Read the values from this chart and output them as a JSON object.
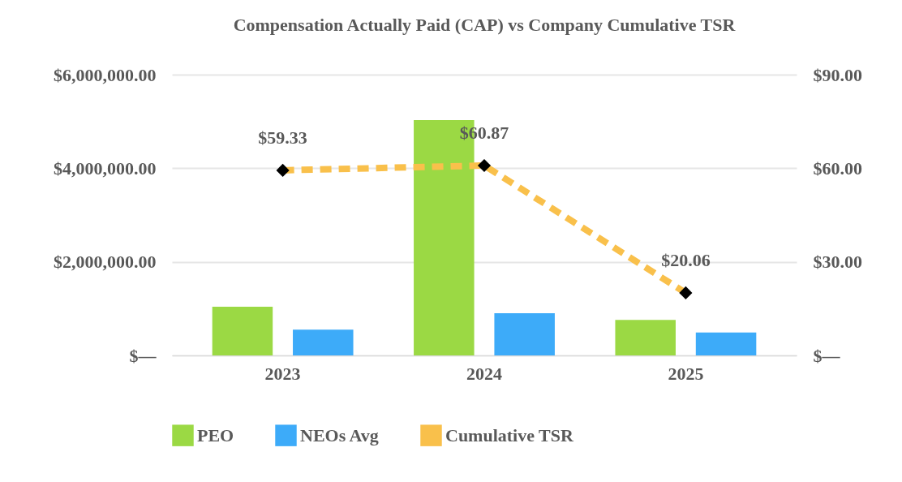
{
  "chart_data": {
    "type": "bar",
    "title": "Compensation Actually Paid (CAP) vs Company Cumulative TSR",
    "categories": [
      "2023",
      "2024",
      "2025"
    ],
    "series": [
      {
        "name": "PEO",
        "color": "#9bd944",
        "values": [
          1040000,
          5030000,
          760000
        ]
      },
      {
        "name": "NEOs Avg",
        "color": "#3dabf9",
        "values": [
          550000,
          900000,
          490000
        ]
      },
      {
        "name": "Cumulative TSR",
        "type": "line",
        "axis": "y2",
        "color": "#f9c04b",
        "values": [
          59.33,
          60.87,
          20.06
        ],
        "value_labels": [
          "$59.33",
          "$60.87",
          "$20.06"
        ]
      }
    ],
    "ylim": [
      0,
      6000000
    ],
    "yticks": [
      {
        "value": 0,
        "label": "$—"
      },
      {
        "value": 2000000,
        "label": "$2,000,000.00"
      },
      {
        "value": 4000000,
        "label": "$4,000,000.00"
      },
      {
        "value": 6000000,
        "label": "$6,000,000.00"
      }
    ],
    "y2lim": [
      0,
      90
    ],
    "y2ticks": [
      {
        "value": 0,
        "label": "$—"
      },
      {
        "value": 30,
        "label": "$30.00"
      },
      {
        "value": 60,
        "label": "$60.00"
      },
      {
        "value": 90,
        "label": "$90.00"
      }
    ],
    "grid": "y",
    "legend": "bottom",
    "marker": "diamond",
    "line_style": "dashed"
  }
}
